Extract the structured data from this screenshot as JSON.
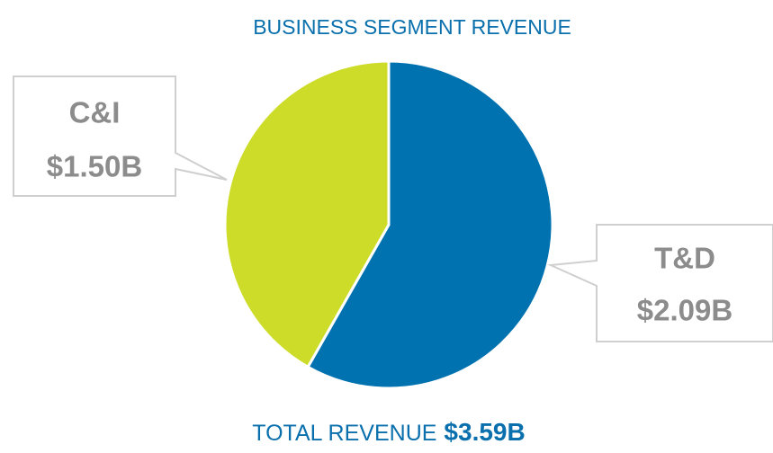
{
  "chart_data": {
    "type": "pie",
    "title": "BUSINESS SEGMENT REVENUE",
    "categories": [
      "T&D",
      "C&I"
    ],
    "values": [
      2.09,
      1.5
    ],
    "value_labels": [
      "$2.09B",
      "$1.50B"
    ],
    "colors": [
      "#0072b0",
      "#cddc29"
    ],
    "footer": "TOTAL REVENUE",
    "footer_total": "$3.59B"
  }
}
